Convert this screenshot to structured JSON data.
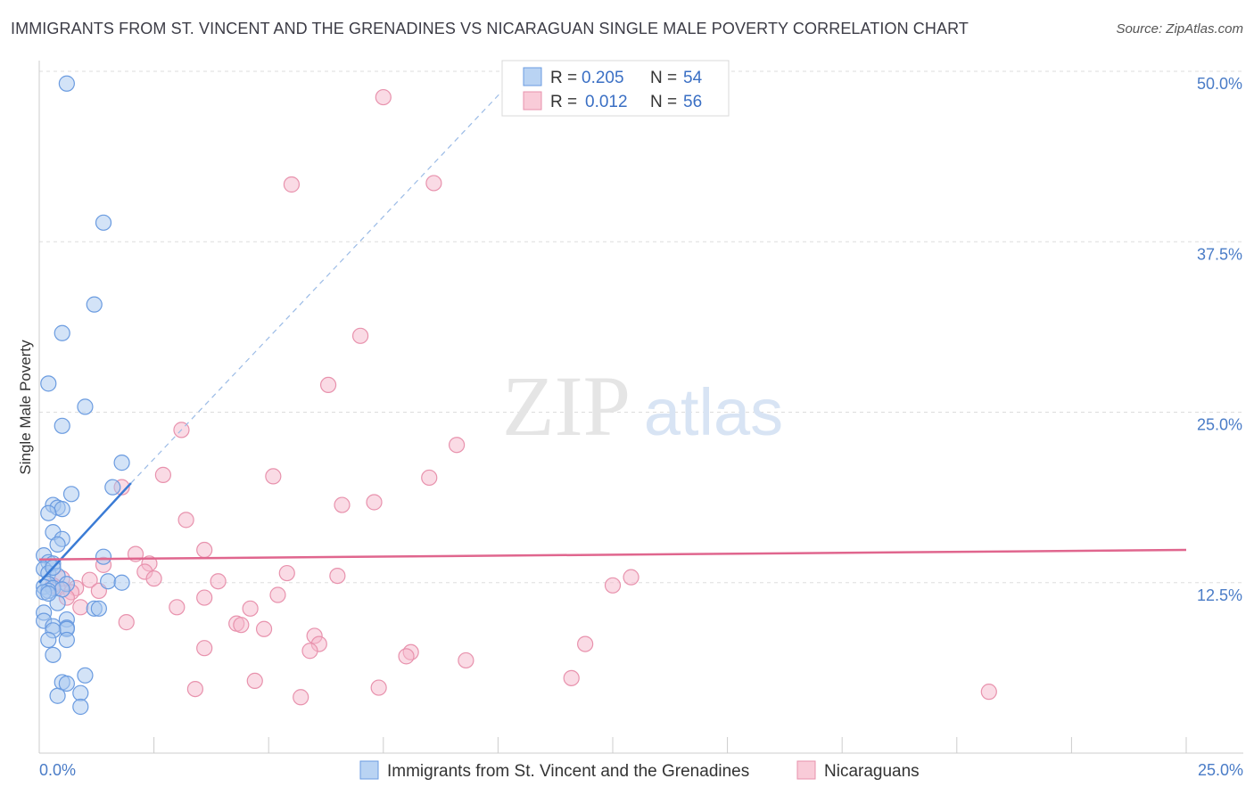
{
  "title": "IMMIGRANTS FROM ST. VINCENT AND THE GRENADINES VS NICARAGUAN SINGLE MALE POVERTY CORRELATION CHART",
  "source": "Source: ZipAtlas.com",
  "watermark": {
    "zip": "ZIP",
    "atlas": "atlas"
  },
  "colors": {
    "blue_fill": "#a8c8f0",
    "blue_stroke": "#6a9be0",
    "blue_line": "#3a7bd5",
    "pink_fill": "#f6b8cb",
    "pink_stroke": "#e892ad",
    "pink_line": "#e0668e",
    "tick_label": "#4a7cc7",
    "grid": "#dddddd"
  },
  "legend": {
    "rows": [
      {
        "r_label": "R =",
        "r_value": "0.205",
        "n_label": "N =",
        "n_value": "54"
      },
      {
        "r_label": "R =",
        "r_value": "0.012",
        "n_label": "N =",
        "n_value": "56"
      }
    ]
  },
  "bottom_legend": [
    "Immigrants from St. Vincent and the Grenadines",
    "Nicaraguans"
  ],
  "chart_data": {
    "type": "scatter",
    "ylabel": "Single Male Poverty",
    "xlim": [
      0,
      25
    ],
    "ylim": [
      0,
      50
    ],
    "x_tick_labels": [
      "0.0%",
      "25.0%"
    ],
    "y_ticks": [
      {
        "value": 12.5,
        "label": "12.5%"
      },
      {
        "value": 25.0,
        "label": "25.0%"
      },
      {
        "value": 37.5,
        "label": "37.5%"
      },
      {
        "value": 50.0,
        "label": "50.0%"
      }
    ],
    "grid": "horizontal dashed",
    "legend_placement": "top-center",
    "series": [
      {
        "name": "Immigrants from St. Vincent and the Grenadines",
        "color": "blue",
        "r": 0.205,
        "n": 54,
        "trend": {
          "x0": 0.0,
          "y0": 12.5,
          "x1": 2.0,
          "y1": 19.8,
          "dash_to_x": 10.5,
          "dash_to_y": 50.0
        },
        "points": [
          [
            0.6,
            49.1
          ],
          [
            1.4,
            38.9
          ],
          [
            1.2,
            32.9
          ],
          [
            0.5,
            30.8
          ],
          [
            0.2,
            27.1
          ],
          [
            1.0,
            25.4
          ],
          [
            0.5,
            24.0
          ],
          [
            1.8,
            21.3
          ],
          [
            1.6,
            19.5
          ],
          [
            0.7,
            19.0
          ],
          [
            0.3,
            18.2
          ],
          [
            0.4,
            18.0
          ],
          [
            0.5,
            17.9
          ],
          [
            0.2,
            17.6
          ],
          [
            0.3,
            16.2
          ],
          [
            0.5,
            15.7
          ],
          [
            0.4,
            15.3
          ],
          [
            0.1,
            14.5
          ],
          [
            1.4,
            14.4
          ],
          [
            0.2,
            14.0
          ],
          [
            0.3,
            13.9
          ],
          [
            0.1,
            13.5
          ],
          [
            0.2,
            13.2
          ],
          [
            0.4,
            13.0
          ],
          [
            1.5,
            12.6
          ],
          [
            1.8,
            12.5
          ],
          [
            0.2,
            12.4
          ],
          [
            0.6,
            12.4
          ],
          [
            0.1,
            12.2
          ],
          [
            0.3,
            12.1
          ],
          [
            0.5,
            12.0
          ],
          [
            0.2,
            11.9
          ],
          [
            0.1,
            11.8
          ],
          [
            0.4,
            11.0
          ],
          [
            1.2,
            10.6
          ],
          [
            1.3,
            10.6
          ],
          [
            0.1,
            10.3
          ],
          [
            0.6,
            9.8
          ],
          [
            0.1,
            9.7
          ],
          [
            0.3,
            9.3
          ],
          [
            0.6,
            9.2
          ],
          [
            0.6,
            9.1
          ],
          [
            0.3,
            9.0
          ],
          [
            0.2,
            8.3
          ],
          [
            0.6,
            8.3
          ],
          [
            0.3,
            7.2
          ],
          [
            1.0,
            5.7
          ],
          [
            0.5,
            5.2
          ],
          [
            0.6,
            5.1
          ],
          [
            0.9,
            4.4
          ],
          [
            0.4,
            4.2
          ],
          [
            0.9,
            3.4
          ],
          [
            0.3,
            13.6
          ],
          [
            0.2,
            11.7
          ]
        ]
      },
      {
        "name": "Nicaraguans",
        "color": "pink",
        "r": 0.012,
        "n": 56,
        "trend": {
          "x0": 0.0,
          "y0": 14.2,
          "x1": 25.0,
          "y1": 14.9
        },
        "points": [
          [
            7.5,
            48.1
          ],
          [
            5.5,
            41.7
          ],
          [
            8.6,
            41.8
          ],
          [
            7.0,
            30.6
          ],
          [
            6.3,
            27.0
          ],
          [
            3.1,
            23.7
          ],
          [
            9.1,
            22.6
          ],
          [
            2.7,
            20.4
          ],
          [
            5.1,
            20.3
          ],
          [
            8.5,
            20.2
          ],
          [
            1.8,
            19.5
          ],
          [
            6.6,
            18.2
          ],
          [
            7.3,
            18.4
          ],
          [
            3.2,
            17.1
          ],
          [
            3.6,
            14.9
          ],
          [
            2.1,
            14.6
          ],
          [
            2.4,
            13.9
          ],
          [
            1.4,
            13.8
          ],
          [
            2.3,
            13.3
          ],
          [
            5.4,
            13.2
          ],
          [
            6.5,
            13.0
          ],
          [
            12.9,
            12.9
          ],
          [
            0.5,
            12.8
          ],
          [
            2.5,
            12.8
          ],
          [
            1.1,
            12.7
          ],
          [
            3.9,
            12.6
          ],
          [
            12.5,
            12.3
          ],
          [
            0.4,
            12.1
          ],
          [
            0.8,
            12.1
          ],
          [
            1.3,
            11.9
          ],
          [
            0.7,
            11.8
          ],
          [
            5.2,
            11.6
          ],
          [
            0.6,
            11.4
          ],
          [
            3.6,
            11.4
          ],
          [
            3.0,
            10.7
          ],
          [
            4.6,
            10.6
          ],
          [
            0.9,
            10.7
          ],
          [
            1.9,
            9.6
          ],
          [
            4.3,
            9.5
          ],
          [
            4.4,
            9.4
          ],
          [
            4.9,
            9.1
          ],
          [
            6.0,
            8.6
          ],
          [
            6.1,
            8.0
          ],
          [
            11.9,
            8.0
          ],
          [
            3.6,
            7.7
          ],
          [
            5.9,
            7.5
          ],
          [
            8.1,
            7.4
          ],
          [
            8.0,
            7.1
          ],
          [
            9.3,
            6.8
          ],
          [
            4.7,
            5.3
          ],
          [
            11.6,
            5.5
          ],
          [
            3.4,
            4.7
          ],
          [
            7.4,
            4.8
          ],
          [
            5.7,
            4.1
          ],
          [
            20.7,
            4.5
          ],
          [
            0.3,
            12.3
          ]
        ]
      }
    ]
  }
}
